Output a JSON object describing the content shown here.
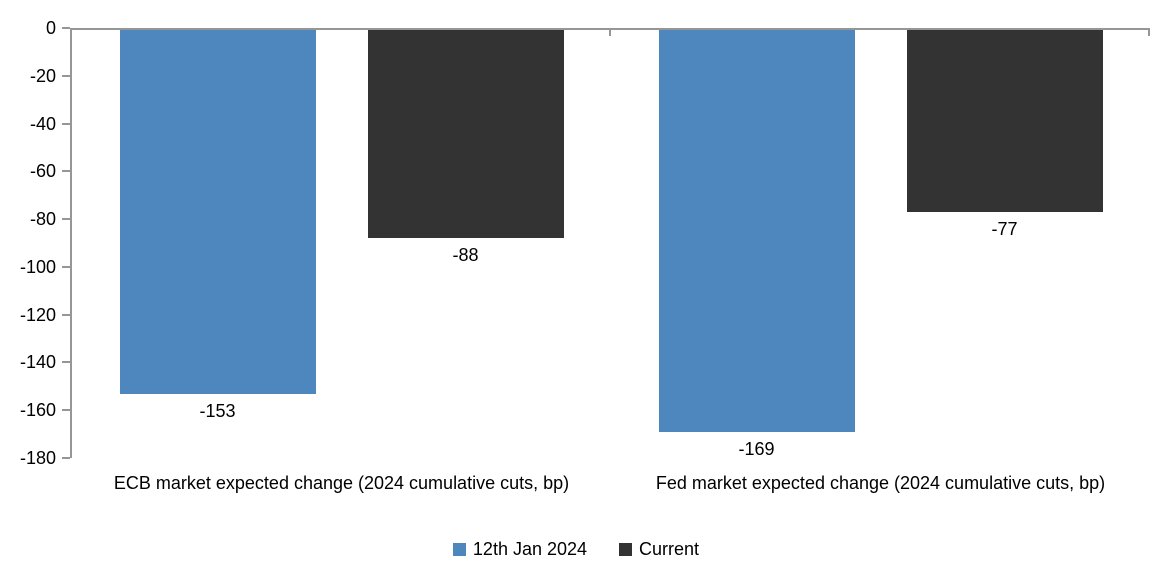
{
  "chart_data": {
    "type": "bar",
    "title": "",
    "xlabel": "",
    "ylabel": "",
    "categories": [
      "ECB market expected change (2024 cumulative cuts, bp)",
      "Fed market expected change (2024 cumulative cuts, bp)"
    ],
    "series": [
      {
        "name": "12th Jan 2024",
        "color": "#4E86BE",
        "values": [
          -153,
          -169
        ]
      },
      {
        "name": "Current",
        "color": "#333333",
        "values": [
          -88,
          -77
        ]
      }
    ],
    "data_labels": [
      "-153",
      "-88",
      "-169",
      "-77"
    ],
    "ylim": [
      -180,
      0
    ],
    "yticks": [
      0,
      -20,
      -40,
      -60,
      -80,
      -100,
      -120,
      -140,
      -160,
      -180
    ],
    "grid": false,
    "legend_position": "bottom",
    "colors": {
      "axis": "#969696",
      "text": "#000000",
      "background": "#FFFFFF"
    }
  }
}
